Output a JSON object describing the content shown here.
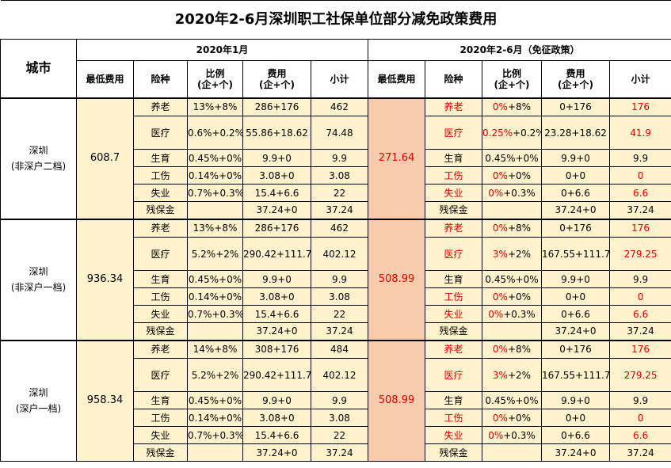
{
  "title": "2020年2-6月深圳职工社保单位部分减免政策费用",
  "headers": {
    "city": "城市",
    "jan_section": "2020年1月",
    "feb_section": "2020年2-6月（免征政策）",
    "min_fee": "最低费用",
    "type": "险种",
    "ratio": "比例\n(企+个)",
    "fee": "费用\n(企+个)",
    "subtotal": "小计"
  },
  "groups": [
    {
      "city": "深圳\n(非深户二档)",
      "jan_min": "608.7",
      "feb_min": "271.64",
      "rows": [
        {
          "type": "养老",
          "jan_ratio": "13%+8%",
          "jan_fee": "286+176",
          "jan_sub": "462",
          "feb_ratio_a": "0%",
          "feb_ratio_b": "+8%",
          "feb_fee": "0+176",
          "feb_sub": "176",
          "red": true
        },
        {
          "type": "医疗",
          "jan_ratio": "0.6%+0.2%",
          "jan_fee": "55.86+18.62",
          "jan_sub": "74.48",
          "feb_ratio_a": "0.25%",
          "feb_ratio_b": "+0.2%",
          "feb_fee": "23.28+18.62",
          "feb_sub": "41.9",
          "red": true
        },
        {
          "type": "生育",
          "jan_ratio": "0.45%+0%",
          "jan_fee": "9.9+0",
          "jan_sub": "9.9",
          "feb_ratio_a": "",
          "feb_ratio_b": "0.45%+0%",
          "feb_fee": "9.9+0",
          "feb_sub": "9.9",
          "red": false
        },
        {
          "type": "工伤",
          "jan_ratio": "0.14%+0%",
          "jan_fee": "3.08+0",
          "jan_sub": "3.08",
          "feb_ratio_a": "0%",
          "feb_ratio_b": "+0%",
          "feb_fee": "0+0",
          "feb_sub": "0",
          "red": true
        },
        {
          "type": "失业",
          "jan_ratio": "0.7%+0.3%",
          "jan_fee": "15.4+6.6",
          "jan_sub": "22",
          "feb_ratio_a": "0%",
          "feb_ratio_b": "+0.3%",
          "feb_fee": "0+6.6",
          "feb_sub": "6.6",
          "red": true
        },
        {
          "type": "残保金",
          "jan_ratio": "",
          "jan_fee": "37.24+0",
          "jan_sub": "37.24",
          "feb_ratio_a": "",
          "feb_ratio_b": "",
          "feb_fee": "37.24+0",
          "feb_sub": "37.24",
          "red": false
        }
      ]
    },
    {
      "city": "深圳\n(非深户一档)",
      "jan_min": "936.34",
      "feb_min": "508.99",
      "rows": [
        {
          "type": "养老",
          "jan_ratio": "13%+8%",
          "jan_fee": "286+176",
          "jan_sub": "462",
          "feb_ratio_a": "0%",
          "feb_ratio_b": "+8%",
          "feb_fee": "0+176",
          "feb_sub": "176",
          "red": true
        },
        {
          "type": "医疗",
          "jan_ratio": "5.2%+2%",
          "jan_fee": "290.42+111.7",
          "jan_sub": "402.12",
          "feb_ratio_a": "3%",
          "feb_ratio_b": "+2%",
          "feb_fee": "167.55+111.7",
          "feb_sub": "279.25",
          "red": true
        },
        {
          "type": "生育",
          "jan_ratio": "0.45%+0%",
          "jan_fee": "9.9+0",
          "jan_sub": "9.9",
          "feb_ratio_a": "",
          "feb_ratio_b": "0.45%+0%",
          "feb_fee": "9.9+0",
          "feb_sub": "9.9",
          "red": false
        },
        {
          "type": "工伤",
          "jan_ratio": "0.14%+0%",
          "jan_fee": "3.08+0",
          "jan_sub": "3.08",
          "feb_ratio_a": "0%",
          "feb_ratio_b": "+0%",
          "feb_fee": "0+0",
          "feb_sub": "0",
          "red": true
        },
        {
          "type": "失业",
          "jan_ratio": "0.7%+0.3%",
          "jan_fee": "15.4+6.6",
          "jan_sub": "22",
          "feb_ratio_a": "0%",
          "feb_ratio_b": "+0.3%",
          "feb_fee": "0+6.6",
          "feb_sub": "6.6",
          "red": true
        },
        {
          "type": "残保金",
          "jan_ratio": "",
          "jan_fee": "37.24+0",
          "jan_sub": "37.24",
          "feb_ratio_a": "",
          "feb_ratio_b": "",
          "feb_fee": "37.24+0",
          "feb_sub": "37.24",
          "red": false
        }
      ]
    },
    {
      "city": "深圳\n(深户一档)",
      "jan_min": "958.34",
      "feb_min": "508.99",
      "rows": [
        {
          "type": "养老",
          "jan_ratio": "14%+8%",
          "jan_fee": "308+176",
          "jan_sub": "484",
          "feb_ratio_a": "0%",
          "feb_ratio_b": "+8%",
          "feb_fee": "0+176",
          "feb_sub": "176",
          "red": true
        },
        {
          "type": "医疗",
          "jan_ratio": "5.2%+2%",
          "jan_fee": "290.42+111.7",
          "jan_sub": "402.12",
          "feb_ratio_a": "3%",
          "feb_ratio_b": "+2%",
          "feb_fee": "167.55+111.7",
          "feb_sub": "279.25",
          "red": true
        },
        {
          "type": "生育",
          "jan_ratio": "0.45%+0%",
          "jan_fee": "9.9+0",
          "jan_sub": "9.9",
          "feb_ratio_a": "",
          "feb_ratio_b": "0.45%+0%",
          "feb_fee": "9.9+0",
          "feb_sub": "9.9",
          "red": false
        },
        {
          "type": "工伤",
          "jan_ratio": "0.14%+0%",
          "jan_fee": "3.08+0",
          "jan_sub": "3.08",
          "feb_ratio_a": "0%",
          "feb_ratio_b": "+0%",
          "feb_fee": "0+0",
          "feb_sub": "0",
          "red": true
        },
        {
          "type": "失业",
          "jan_ratio": "0.7%+0.3%",
          "jan_fee": "15.4+6.6",
          "jan_sub": "22",
          "feb_ratio_a": "0%",
          "feb_ratio_b": "+0.3%",
          "feb_fee": "0+6.6",
          "feb_sub": "6.6",
          "red": true
        },
        {
          "type": "残保金",
          "jan_ratio": "",
          "jan_fee": "37.24+0",
          "jan_sub": "37.24",
          "feb_ratio_a": "",
          "feb_ratio_b": "",
          "feb_fee": "37.24+0",
          "feb_sub": "37.24",
          "red": false
        }
      ]
    }
  ],
  "colors": {
    "red_text": "#e00000",
    "yellow_fill": "#fff2cc",
    "salmon_fill": "#f8cbad"
  }
}
